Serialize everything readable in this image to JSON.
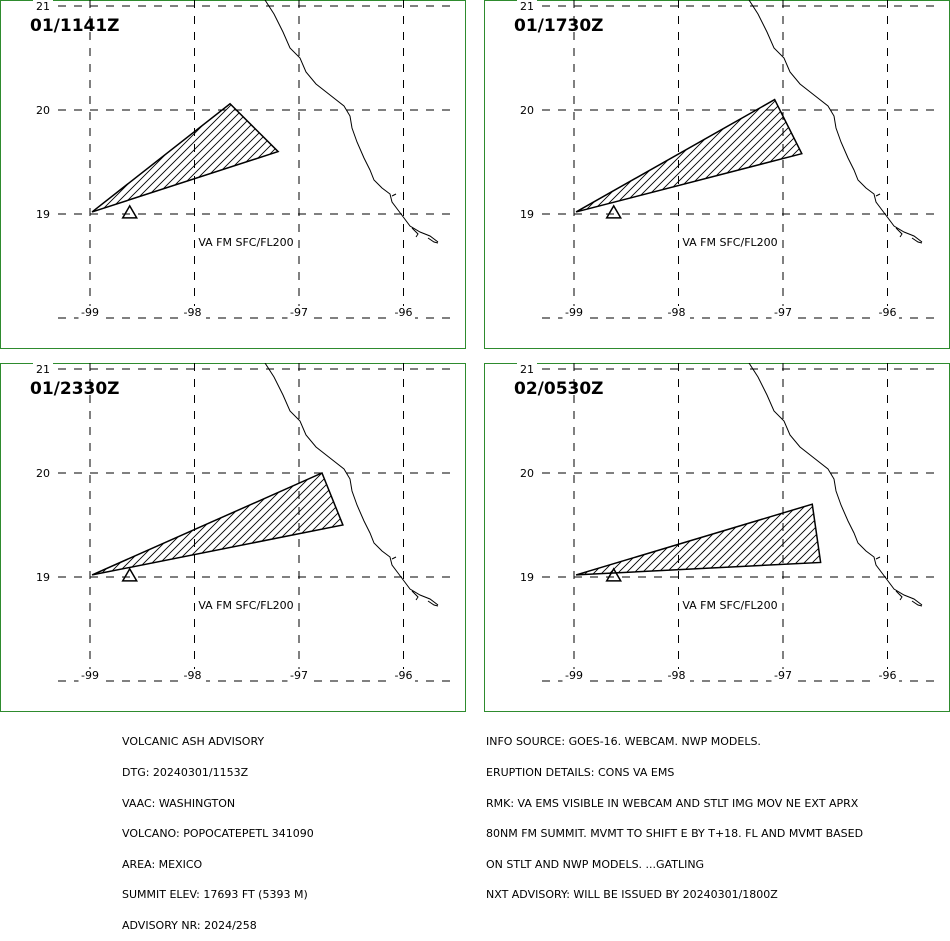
{
  "panels": [
    {
      "time": "01/1141Z",
      "label": "VA FM SFC/FL200",
      "polygon": [
        [
          -98.98,
          19.02
        ],
        [
          -97.66,
          20.06
        ],
        [
          -97.2,
          19.6
        ]
      ]
    },
    {
      "time": "01/1730Z",
      "label": "VA FM SFC/FL200",
      "polygon": [
        [
          -98.98,
          19.02
        ],
        [
          -97.08,
          20.1
        ],
        [
          -96.82,
          19.58
        ]
      ]
    },
    {
      "time": "01/2330Z",
      "label": "VA FM SFC/FL200",
      "polygon": [
        [
          -98.98,
          19.02
        ],
        [
          -96.78,
          20.0
        ],
        [
          -96.58,
          19.5
        ]
      ]
    },
    {
      "time": "02/0530Z",
      "label": "VA FM SFC/FL200",
      "polygon": [
        [
          -98.98,
          19.02
        ],
        [
          -96.72,
          19.7
        ],
        [
          -96.64,
          19.14
        ]
      ]
    }
  ],
  "axes": {
    "lon_ticks": [
      "-99",
      "-98",
      "-97",
      "-96"
    ],
    "lat_ticks": [
      "21",
      "20",
      "19"
    ]
  },
  "volcano": {
    "lon": -98.62,
    "lat": 19.02,
    "symbol": "triangle"
  },
  "advisory_left": [
    "VOLCANIC ASH ADVISORY",
    "DTG: 20240301/1153Z",
    "VAAC: WASHINGTON",
    "VOLCANO: POPOCATEPETL 341090",
    "AREA: MEXICO",
    "SUMMIT ELEV: 17693 FT (5393 M)",
    "ADVISORY NR: 2024/258"
  ],
  "advisory_right": [
    "INFO SOURCE: GOES-16. WEBCAM. NWP MODELS.",
    "ERUPTION DETAILS: CONS VA EMS",
    "RMK: VA EMS VISIBLE IN WEBCAM AND STLT IMG MOV NE EXT APRX",
    "80NM FM SUMMIT. MVMT TO SHIFT E BY T+18. FL AND MVMT BASED",
    "ON STLT AND NWP MODELS. ...GATLING",
    "NXT ADVISORY: WILL BE ISSUED BY 20240301/1800Z"
  ],
  "colors": {
    "panel_border": "#2e8b2e",
    "ink": "#000000"
  }
}
